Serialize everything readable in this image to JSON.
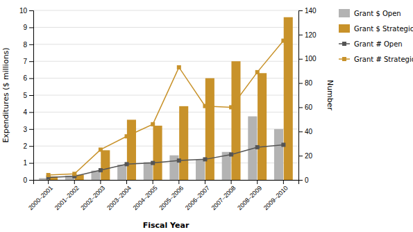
{
  "chart_data": {
    "type": "bar",
    "categories": [
      "2000–2001",
      "2001–2002",
      "2002–2003",
      "2003–2004",
      "2004–2005",
      "2005–2006",
      "2006–2007",
      "2007–2008",
      "2008–2009",
      "2009–2010"
    ],
    "xlabel": "Fiscal Year",
    "ylabel": "Expenditures ($ millions)",
    "y2label": "Number",
    "ylim": [
      0,
      10
    ],
    "yticks": [
      0,
      1,
      2,
      3,
      4,
      5,
      6,
      7,
      8,
      9,
      10
    ],
    "y2lim": [
      0,
      140
    ],
    "y2ticks": [
      0,
      20,
      40,
      60,
      80,
      100,
      120,
      140
    ],
    "grid": true,
    "legend": "right",
    "series": [
      {
        "name": "Grant $ Open",
        "type": "bar",
        "color": "#b3b3b3",
        "values": [
          0.1,
          0.25,
          0.55,
          0.9,
          1.05,
          1.45,
          1.2,
          1.65,
          3.75,
          3.0
        ]
      },
      {
        "name": "Grant $ Strategic",
        "type": "bar",
        "color": "#c8922a",
        "values": [
          0.2,
          0.3,
          1.75,
          3.55,
          3.2,
          4.35,
          6.0,
          7.0,
          6.3,
          9.6
        ]
      },
      {
        "name": "Grant # Open",
        "type": "line",
        "axis": "y2",
        "color": "#555555",
        "marker": "square",
        "values": [
          2,
          3,
          8,
          13,
          14,
          16,
          17,
          21,
          27,
          29
        ]
      },
      {
        "name": "Grant # Strategic",
        "type": "line",
        "axis": "y2",
        "color": "#c8922a",
        "marker": "square",
        "values": [
          4,
          5,
          25,
          36,
          46,
          93,
          61,
          60,
          89,
          115
        ]
      }
    ]
  }
}
